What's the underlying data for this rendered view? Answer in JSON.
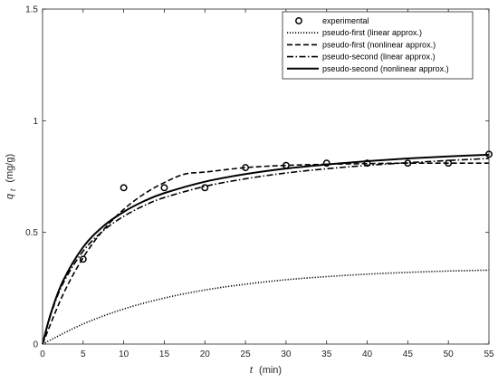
{
  "chart_data": {
    "type": "line",
    "title": "",
    "xlabel": {
      "symbol": "t",
      "unit": "(min)"
    },
    "ylabel": {
      "symbol": "q",
      "subscript": "t",
      "unit": "(mg/g)"
    },
    "xlim": [
      0,
      55
    ],
    "ylim": [
      0,
      1.5
    ],
    "xticks": [
      0,
      5,
      10,
      15,
      20,
      25,
      30,
      35,
      40,
      45,
      50,
      55
    ],
    "yticks": [
      0,
      0.5,
      1,
      1.5
    ],
    "ytick_labels": [
      "0",
      "0.5",
      "1",
      "1.5"
    ],
    "grid": false,
    "legend_position": "top-right",
    "experimental": {
      "name": "experimental",
      "x": [
        5,
        10,
        15,
        20,
        25,
        30,
        35,
        40,
        45,
        50,
        55
      ],
      "y": [
        0.38,
        0.7,
        0.7,
        0.7,
        0.79,
        0.8,
        0.81,
        0.81,
        0.81,
        0.81,
        0.85
      ]
    },
    "series": [
      {
        "name": "pseudo-first (linear approx.)",
        "style": "dotted",
        "x": [
          0,
          5,
          10,
          15,
          20,
          25,
          30,
          35,
          40,
          45,
          50,
          55
        ],
        "y": [
          0,
          0.09,
          0.157,
          0.206,
          0.242,
          0.268,
          0.288,
          0.302,
          0.313,
          0.321,
          0.327,
          0.331
        ]
      },
      {
        "name": "pseudo-first (nonlinear approx.)",
        "style": "dashed",
        "x": [
          0,
          2.5,
          5,
          7.5,
          10,
          12.5,
          15,
          17.5,
          20,
          25,
          30,
          35,
          40,
          45,
          50,
          55
        ],
        "y": [
          0,
          0.22,
          0.387,
          0.511,
          0.603,
          0.672,
          0.723,
          0.761,
          0.77,
          0.79,
          0.8,
          0.805,
          0.808,
          0.81,
          0.81,
          0.81
        ]
      },
      {
        "name": "pseudo-second (linear approx.)",
        "style": "dashdot",
        "x": [
          0,
          1,
          2.5,
          5,
          7.5,
          10,
          12.5,
          15,
          20,
          25,
          30,
          35,
          40,
          45,
          50,
          55
        ],
        "y": [
          0,
          0.13,
          0.27,
          0.416,
          0.508,
          0.572,
          0.62,
          0.656,
          0.706,
          0.74,
          0.766,
          0.785,
          0.8,
          0.812,
          0.822,
          0.831
        ]
      },
      {
        "name": "pseudo-second (nonlinear approx.)",
        "style": "solid",
        "x": [
          0,
          1,
          2.5,
          5,
          7.5,
          10,
          12.5,
          15,
          20,
          25,
          30,
          35,
          40,
          45,
          50,
          55
        ],
        "y": [
          0,
          0.135,
          0.281,
          0.434,
          0.528,
          0.592,
          0.64,
          0.676,
          0.727,
          0.761,
          0.786,
          0.804,
          0.819,
          0.831,
          0.84,
          0.848
        ]
      }
    ]
  }
}
